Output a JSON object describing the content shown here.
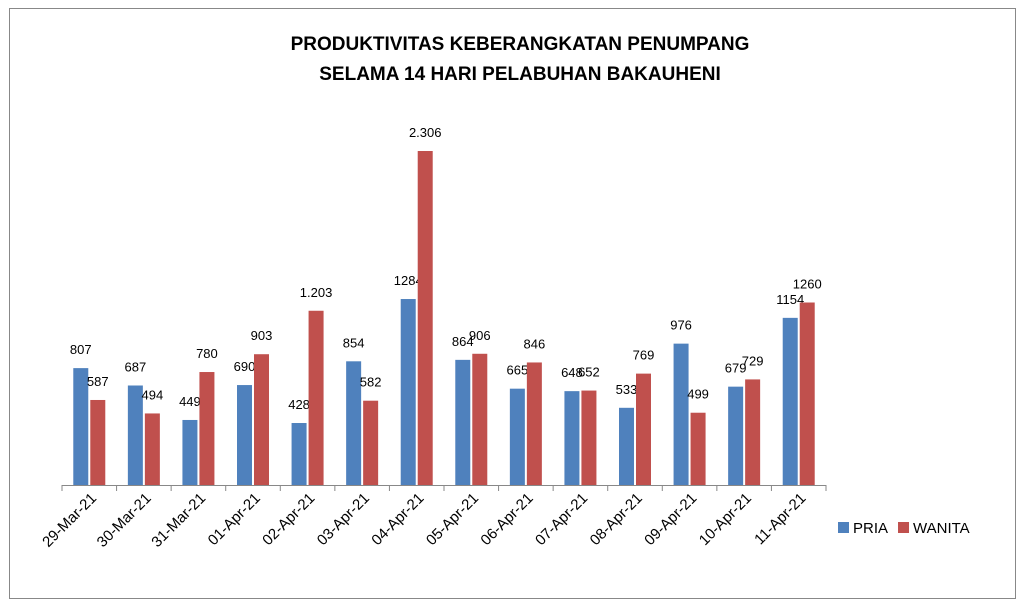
{
  "chart_data": {
    "type": "bar",
    "title": [
      "PRODUKTIVITAS KEBERANGKATAN PENUMPANG",
      "SELAMA 14 HARI PELABUHAN BAKAUHENI"
    ],
    "categories": [
      "29-Mar-21",
      "30-Mar-21",
      "31-Mar-21",
      "01-Apr-21",
      "02-Apr-21",
      "03-Apr-21",
      "04-Apr-21",
      "05-Apr-21",
      "06-Apr-21",
      "07-Apr-21",
      "08-Apr-21",
      "09-Apr-21",
      "10-Apr-21",
      "11-Apr-21"
    ],
    "series": [
      {
        "name": "PRIA",
        "color": "#4f81bd",
        "values": [
          807,
          687,
          449,
          690,
          428,
          854,
          1284,
          864,
          665,
          648,
          533,
          976,
          679,
          1154
        ]
      },
      {
        "name": "WANITA",
        "color": "#c0504d",
        "values": [
          587,
          494,
          780,
          903,
          1203,
          582,
          2306,
          906,
          846,
          652,
          769,
          499,
          729,
          1260
        ],
        "value_labels": [
          "587",
          "494",
          "780",
          "903",
          "1.203",
          "582",
          "2.306",
          "906",
          "846",
          "652",
          "769",
          "499",
          "729",
          "1260"
        ]
      }
    ],
    "legend": "right"
  }
}
